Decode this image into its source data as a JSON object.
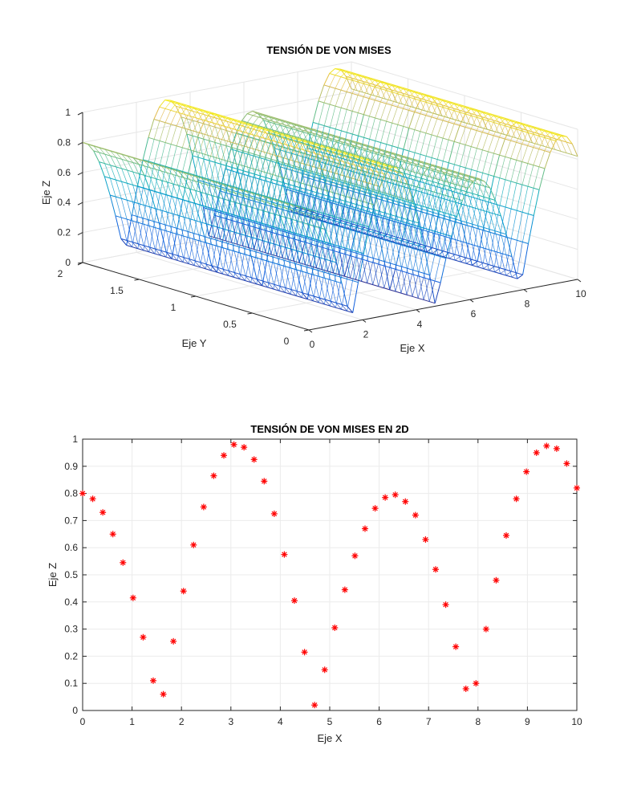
{
  "chart_data": [
    {
      "type": "surface",
      "title": "TENSIÓN DE VON MISES",
      "xlabel": "Eje X",
      "ylabel": "Eje Y",
      "zlabel": "Eje Z",
      "xlim": [
        0,
        10
      ],
      "ylim": [
        0,
        2
      ],
      "zlim": [
        0,
        1
      ],
      "xticks": [
        "0",
        "2",
        "4",
        "6",
        "8",
        "10"
      ],
      "yticks": [
        "0",
        "0.5",
        "1",
        "1.5",
        "2"
      ],
      "zticks": [
        "0",
        "0.2",
        "0.4",
        "0.6",
        "0.8",
        "1"
      ],
      "grid": true,
      "colormap": "parula",
      "x": [
        0,
        0.2041,
        0.4082,
        0.6122,
        0.8163,
        1.0204,
        1.2245,
        1.4286,
        1.6327,
        1.8367,
        2.0408,
        2.2449,
        2.449,
        2.6531,
        2.8571,
        3.0612,
        3.2653,
        3.4694,
        3.6735,
        3.8776,
        4.0816,
        4.2857,
        4.4898,
        4.6939,
        4.898,
        5.102,
        5.3061,
        5.5102,
        5.7143,
        5.9184,
        6.1224,
        6.3265,
        6.5306,
        6.7347,
        6.9388,
        7.1429,
        7.3469,
        7.551,
        7.7551,
        7.9592,
        8.1633,
        8.3673,
        8.5714,
        8.7755,
        8.9796,
        9.1837,
        9.3878,
        9.5918,
        9.7959,
        10
      ],
      "z_profile": [
        0.8,
        0.78,
        0.73,
        0.65,
        0.545,
        0.415,
        0.27,
        0.11,
        0.06,
        0.255,
        0.44,
        0.61,
        0.75,
        0.865,
        0.94,
        0.98,
        0.97,
        0.925,
        0.845,
        0.725,
        0.575,
        0.405,
        0.215,
        0.02,
        0.15,
        0.305,
        0.445,
        0.57,
        0.67,
        0.745,
        0.785,
        0.795,
        0.77,
        0.72,
        0.63,
        0.52,
        0.39,
        0.235,
        0.08,
        0.1,
        0.3,
        0.48,
        0.645,
        0.78,
        0.88,
        0.95,
        0.975,
        0.965,
        0.91,
        0.82
      ]
    },
    {
      "type": "scatter",
      "title": "TENSIÓN DE VON MISES EN 2D",
      "xlabel": "Eje X",
      "ylabel": "Eje Z",
      "xlim": [
        0,
        10
      ],
      "ylim": [
        0,
        1
      ],
      "xticks": [
        "0",
        "1",
        "2",
        "3",
        "4",
        "5",
        "6",
        "7",
        "8",
        "9",
        "10"
      ],
      "yticks": [
        "0",
        "0.1",
        "0.2",
        "0.3",
        "0.4",
        "0.5",
        "0.6",
        "0.7",
        "0.8",
        "0.9",
        "1"
      ],
      "marker": "*",
      "color": "#ff0000",
      "x": [
        0,
        0.2041,
        0.4082,
        0.6122,
        0.8163,
        1.0204,
        1.2245,
        1.4286,
        1.6327,
        1.8367,
        2.0408,
        2.2449,
        2.449,
        2.6531,
        2.8571,
        3.0612,
        3.2653,
        3.4694,
        3.6735,
        3.8776,
        4.0816,
        4.2857,
        4.4898,
        4.6939,
        4.898,
        5.102,
        5.3061,
        5.5102,
        5.7143,
        5.9184,
        6.1224,
        6.3265,
        6.5306,
        6.7347,
        6.9388,
        7.1429,
        7.3469,
        7.551,
        7.7551,
        7.9592,
        8.1633,
        8.3673,
        8.5714,
        8.7755,
        8.9796,
        9.1837,
        9.3878,
        9.5918,
        9.7959,
        10
      ],
      "y": [
        0.8,
        0.78,
        0.73,
        0.65,
        0.545,
        0.415,
        0.27,
        0.11,
        0.06,
        0.255,
        0.44,
        0.61,
        0.75,
        0.865,
        0.94,
        0.98,
        0.97,
        0.925,
        0.845,
        0.725,
        0.575,
        0.405,
        0.215,
        0.02,
        0.15,
        0.305,
        0.445,
        0.57,
        0.67,
        0.745,
        0.785,
        0.795,
        0.77,
        0.72,
        0.63,
        0.52,
        0.39,
        0.235,
        0.08,
        0.1,
        0.3,
        0.48,
        0.645,
        0.78,
        0.88,
        0.95,
        0.975,
        0.965,
        0.91,
        0.82
      ]
    }
  ]
}
